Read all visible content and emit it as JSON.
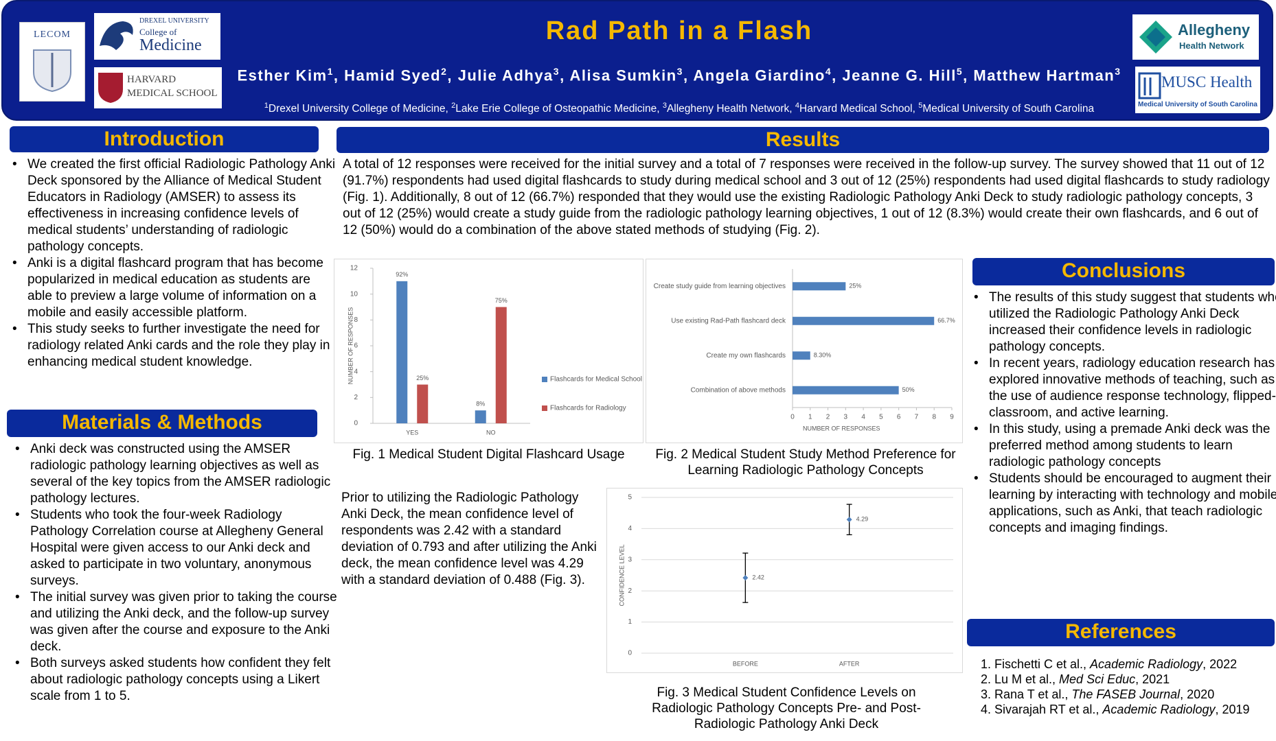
{
  "header": {
    "title": "Rad Path in a Flash",
    "authors": [
      {
        "name": "Esther Kim",
        "sup": "1",
        "after": ", "
      },
      {
        "name": "Hamid Syed",
        "sup": "2",
        "after": ", "
      },
      {
        "name": "Julie Adhya",
        "sup": "3",
        "after": ", "
      },
      {
        "name": "Alisa Sumkin",
        "sup": "3",
        "after": ", "
      },
      {
        "name": "Angela Giardino",
        "sup": "4",
        "after": ", "
      },
      {
        "name": "Jeanne G. Hill",
        "sup": "5",
        "after": ", "
      },
      {
        "name": "Matthew Hartman",
        "sup": "3"
      }
    ],
    "affiliations": [
      {
        "sup": "1",
        "name": "Drexel University College of Medicine",
        "after": ", "
      },
      {
        "sup": "2",
        "name": "Lake Erie College of Osteopathic Medicine",
        "after": ", "
      },
      {
        "sup": "3",
        "name": "Allegheny Health Network",
        "after": ", "
      },
      {
        "sup": "4",
        "name": "Harvard Medical School",
        "after": ", "
      },
      {
        "sup": "5",
        "name": "Medical University of South Carolina"
      }
    ],
    "logos": {
      "lecom": "LECOM",
      "drexel_top": "DREXEL UNIVERSITY",
      "drexel_mid": "College of",
      "drexel_main": "Medicine",
      "harvard_1": "HARVARD",
      "harvard_2": "MEDICAL SCHOOL",
      "allegheny_1": "Allegheny",
      "allegheny_2": "Health Network",
      "musc_1": "MUSC Health",
      "musc_2": "Medical University of South Carolina"
    }
  },
  "introduction": {
    "heading": "Introduction",
    "bullets": [
      "We created the first official Radiologic Pathology Anki Deck sponsored by the Alliance of Medical Student Educators in Radiology (AMSER) to assess its effectiveness in increasing confidence levels of medical students’ understanding of radiologic pathology concepts.",
      "Anki is a digital flashcard program that has become popularized in medical education as students are able to preview a large volume of information on a mobile and easily accessible platform.",
      "This study seeks to further investigate the need for radiology related Anki cards and the role they play in enhancing medical student knowledge."
    ]
  },
  "methods": {
    "heading": "Materials & Methods",
    "bullets": [
      "Anki deck was constructed using the AMSER radiologic pathology learning objectives as well as several of the key topics from the AMSER radiologic pathology lectures.",
      "Students who took the four-week Radiology Pathology Correlation course at Allegheny General Hospital were given access to our Anki deck and asked to participate in two voluntary, anonymous surveys.",
      "The initial survey was given prior to taking the course and utilizing the Anki deck, and the follow-up survey was given after the course and exposure to the Anki deck.",
      "Both surveys asked students how confident they felt about radiologic pathology concepts using a Likert scale from 1 to 5."
    ]
  },
  "results": {
    "heading": "Results",
    "text": "A total of 12 responses were received for the initial survey and a total of 7 responses were received in the follow-up survey. The survey showed that 11 out of 12 (91.7%) respondents had used digital flashcards to study during medical school and 3 out of 12 (25%) respondents had used digital flashcards to study radiology (Fig. 1). Additionally, 8 out of 12 (66.7%) responded that they would use the existing Radiologic Pathology Anki Deck to study radiologic pathology concepts, 3 out of 12 (25%) would create a study guide from the radiologic pathology learning objectives, 1 out of 12 (8.3%) would create their own flashcards, and 6 out of 12 (50%) would do a combination of the above stated methods of studying (Fig. 2).",
    "confidence_text": "Prior to utilizing the Radiologic Pathology Anki Deck, the mean confidence level of respondents was 2.42 with a standard deviation of 0.793 and after utilizing the Anki deck, the mean confidence level was 4.29 with a standard deviation of 0.488 (Fig. 3)."
  },
  "conclusions": {
    "heading": "Conclusions",
    "bullets": [
      "The results of this study suggest that students who utilized the Radiologic Pathology Anki Deck increased their confidence levels in radiologic pathology concepts.",
      "In recent years, radiology education research has explored innovative methods of teaching, such as the use of audience response technology, flipped-classroom, and active learning.",
      "In this study, using a premade Anki deck was the preferred method among students to learn radiologic pathology concepts",
      "Students should be encouraged to augment their learning by interacting with technology and mobile applications, such as Anki, that teach radiologic concepts and imaging findings."
    ]
  },
  "references": {
    "heading": "References",
    "items": [
      {
        "authors": "Fischetti C et al., ",
        "journal": "Academic Radiology",
        "year": ", 2022"
      },
      {
        "authors": "Lu M et al., ",
        "journal": "Med Sci Educ",
        "year": ", 2021"
      },
      {
        "authors": "Rana T et al., ",
        "journal": "The FASEB Journal",
        "year": ", 2020"
      },
      {
        "authors": "Sivarajah RT et al., ",
        "journal": "Academic Radiology",
        "year": ", 2019"
      }
    ]
  },
  "chart_data": [
    {
      "type": "bar",
      "title": "Fig. 1 Medical Student Digital Flashcard Usage",
      "categories": [
        "YES",
        "NO"
      ],
      "series": [
        {
          "name": "Flashcards for Medical School",
          "color": "#4f81bd",
          "values": [
            11,
            1
          ],
          "value_labels": [
            "92%",
            "8%"
          ]
        },
        {
          "name": "Flashcards for Radiology",
          "color": "#c0504d",
          "values": [
            3,
            9
          ],
          "value_labels": [
            "25%",
            "75%"
          ]
        }
      ],
      "ylabel": "NUMBER OF RESPONSES",
      "ylim": [
        0,
        12
      ],
      "yticks": [
        0,
        2,
        4,
        6,
        8,
        10,
        12
      ],
      "grid": false,
      "legend": "right"
    },
    {
      "type": "barh",
      "title": "Fig. 2 Medical Student Study Method Preference for Learning Radiologic Pathology Concepts",
      "categories": [
        "Create study guide from learning objectives",
        "Use existing Rad-Path flashcard deck",
        "Create my own flashcards",
        "Combination of above methods"
      ],
      "values": [
        3,
        8,
        1,
        6
      ],
      "value_labels": [
        "25%",
        "66.7%",
        "8.30%",
        "50%"
      ],
      "color": "#4f81bd",
      "xlabel": "NUMBER OF RESPONSES",
      "xlim": [
        0,
        9
      ],
      "xticks": [
        0,
        1,
        2,
        3,
        4,
        5,
        6,
        7,
        8,
        9
      ],
      "grid": false
    },
    {
      "type": "scatter",
      "title": "Fig. 3 Medical Student Confidence Levels on Radiologic Pathology Concepts Pre- and Post-Radiologic Pathology Anki Deck",
      "categories": [
        "BEFORE",
        "AFTER"
      ],
      "values": [
        2.42,
        4.29
      ],
      "errors": [
        0.793,
        0.488
      ],
      "color": "#4f81bd",
      "ylabel": "CONFIDENCE LEVEL",
      "ylim": [
        0,
        5
      ],
      "yticks": [
        0,
        1,
        2,
        3,
        4,
        5
      ],
      "grid": true
    }
  ]
}
